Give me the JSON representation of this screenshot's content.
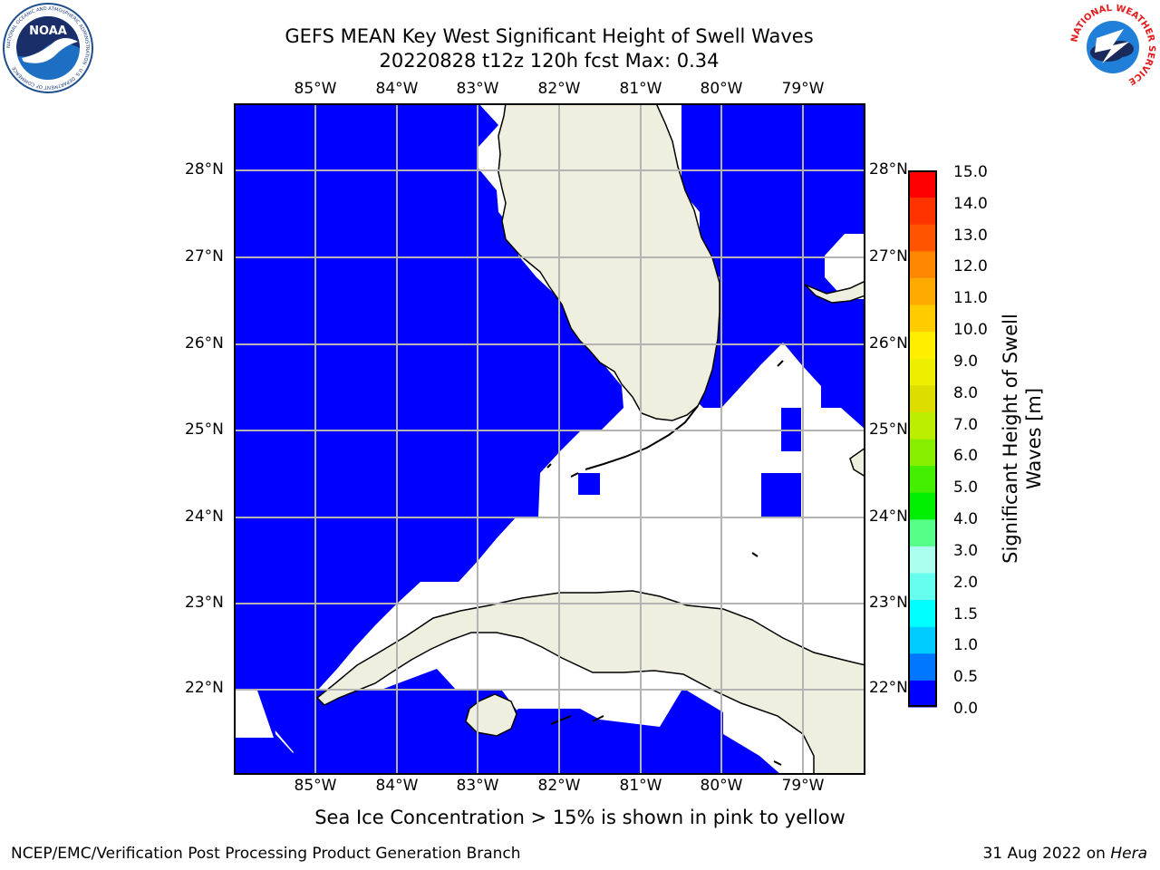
{
  "header": {
    "title_line1": "GEFS MEAN Key West Significant Height of Swell Waves",
    "title_line2": "20220828 t12z 120h fcst   Max: 0.34"
  },
  "map": {
    "lon_labels": [
      "85°W",
      "84°W",
      "83°W",
      "82°W",
      "81°W",
      "80°W",
      "79°W"
    ],
    "lat_labels": [
      "28°N",
      "27°N",
      "26°N",
      "25°N",
      "24°N",
      "23°N",
      "22°N"
    ],
    "ocean_color": "#0000ff",
    "land_color": "#efefdf",
    "grid_color": "#b4b4b4"
  },
  "colorbar": {
    "label": "Significant Height of Swell Waves [m]",
    "ticks": [
      "15.0",
      "14.0",
      "13.0",
      "12.0",
      "11.0",
      "10.0",
      "9.0",
      "8.0",
      "7.0",
      "6.0",
      "5.0",
      "4.0",
      "3.0",
      "2.0",
      "1.5",
      "1.0",
      "0.5",
      "0.0"
    ],
    "colors": [
      "#0000ff",
      "#0077ff",
      "#00ccff",
      "#00ffff",
      "#66ffee",
      "#aaffee",
      "#55ff88",
      "#00ee00",
      "#44ee00",
      "#88ee00",
      "#bbee00",
      "#dddd00",
      "#eeee00",
      "#ffee00",
      "#ffcc00",
      "#ffaa00",
      "#ff8800",
      "#ff5500",
      "#ff3300",
      "#ff0000"
    ]
  },
  "note": "Sea Ice Concentration > 15% is shown in pink to yellow",
  "footer": {
    "left": "NCEP/EMC/Verification Post Processing Product Generation Branch",
    "right_prefix": "31 Aug 2022 on ",
    "right_host": "Hera"
  },
  "logos": {
    "noaa_text": "NOAA",
    "noaa_ring_text": "NATIONAL OCEANIC AND ATMOSPHERIC ADMINISTRATION · U.S. DEPARTMENT OF COMMERCE",
    "nws_ring_text": "NATIONAL WEATHER SERVICE"
  }
}
